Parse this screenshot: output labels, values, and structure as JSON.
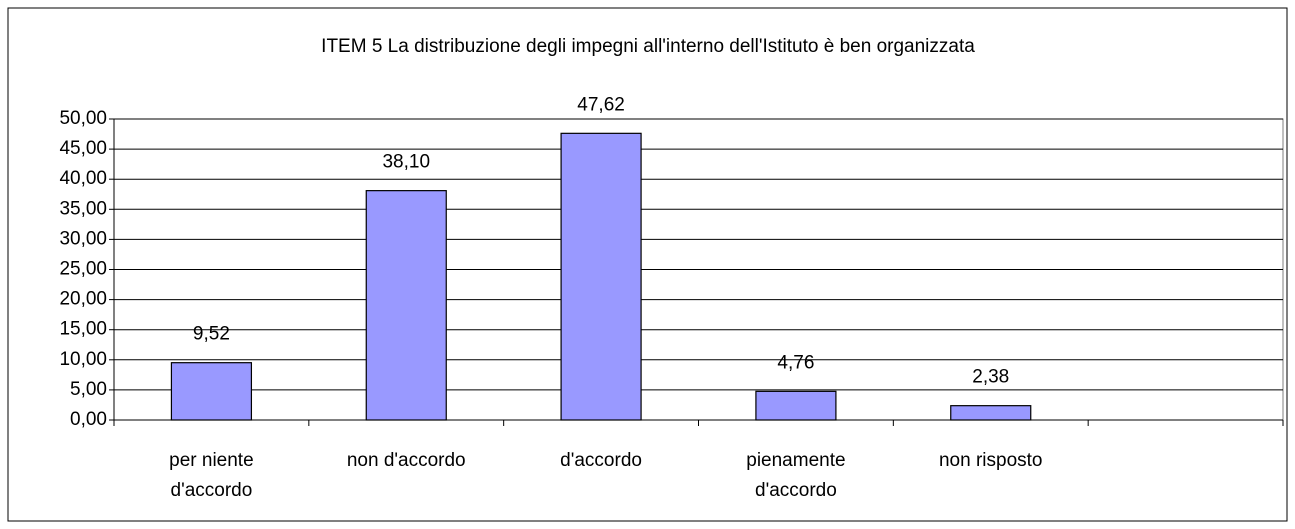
{
  "chart_data": {
    "type": "bar",
    "title": "ITEM 5 La distribuzione degli impegni all'interno dell'Istituto è ben organizzata",
    "categories": [
      "per niente d'accordo",
      "non d'accordo",
      "d'accordo",
      "pienamente d'accordo",
      "non risposto",
      null
    ],
    "values": [
      9.52,
      38.1,
      47.62,
      4.76,
      2.38,
      null
    ],
    "value_labels": [
      "9,52",
      "38,10",
      "47,62",
      "4,76",
      "2,38",
      null
    ],
    "color": "#9999ff",
    "ylim": [
      0,
      50
    ],
    "yticks": [
      {
        "value": 0,
        "label": "0,00"
      },
      {
        "value": 5,
        "label": "5,00"
      },
      {
        "value": 10,
        "label": "10,00"
      },
      {
        "value": 15,
        "label": "15,00"
      },
      {
        "value": 20,
        "label": "20,00"
      },
      {
        "value": 25,
        "label": "25,00"
      },
      {
        "value": 30,
        "label": "30,00"
      },
      {
        "value": 35,
        "label": "35,00"
      },
      {
        "value": 40,
        "label": "40,00"
      },
      {
        "value": 45,
        "label": "45,00"
      },
      {
        "value": 50,
        "label": "50,00"
      }
    ],
    "grid": true
  }
}
